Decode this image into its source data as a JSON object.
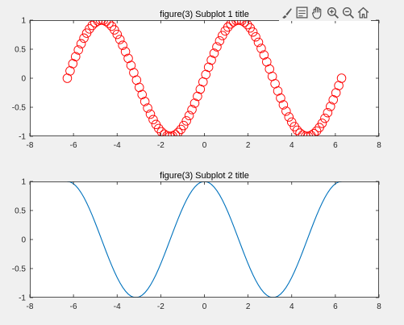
{
  "toolbar": {
    "icons": [
      "brush-icon",
      "legend-icon",
      "pan-icon",
      "zoom-in-icon",
      "zoom-out-icon",
      "home-icon"
    ]
  },
  "chart_data": [
    {
      "type": "scatter",
      "title": "figure(3) Subplot 1 title",
      "xlabel": "",
      "ylabel": "",
      "xlim": [
        -8,
        8
      ],
      "ylim": [
        -1,
        1
      ],
      "xticks": [
        "-8",
        "-6",
        "-4",
        "-2",
        "0",
        "2",
        "4",
        "6",
        "8"
      ],
      "yticks": [
        "-1",
        "-0.5",
        "0",
        "0.5",
        "1"
      ],
      "grid": false,
      "marker": "circle-open",
      "color": "#ff0000",
      "series": [
        {
          "function": "sin(x)",
          "x_range": [
            -6.2832,
            6.2832
          ],
          "n_points": 100
        }
      ]
    },
    {
      "type": "line",
      "title": "figure(3) Subplot 2 title",
      "xlabel": "",
      "ylabel": "",
      "xlim": [
        -8,
        8
      ],
      "ylim": [
        -1,
        1
      ],
      "xticks": [
        "-8",
        "-6",
        "-4",
        "-2",
        "0",
        "2",
        "4",
        "6",
        "8"
      ],
      "yticks": [
        "-1",
        "-0.5",
        "0",
        "0.5",
        "1"
      ],
      "grid": false,
      "color": "#0072bd",
      "series": [
        {
          "function": "cos(x)",
          "x_range": [
            -6.2832,
            6.2832
          ],
          "n_points": 100
        }
      ]
    }
  ]
}
